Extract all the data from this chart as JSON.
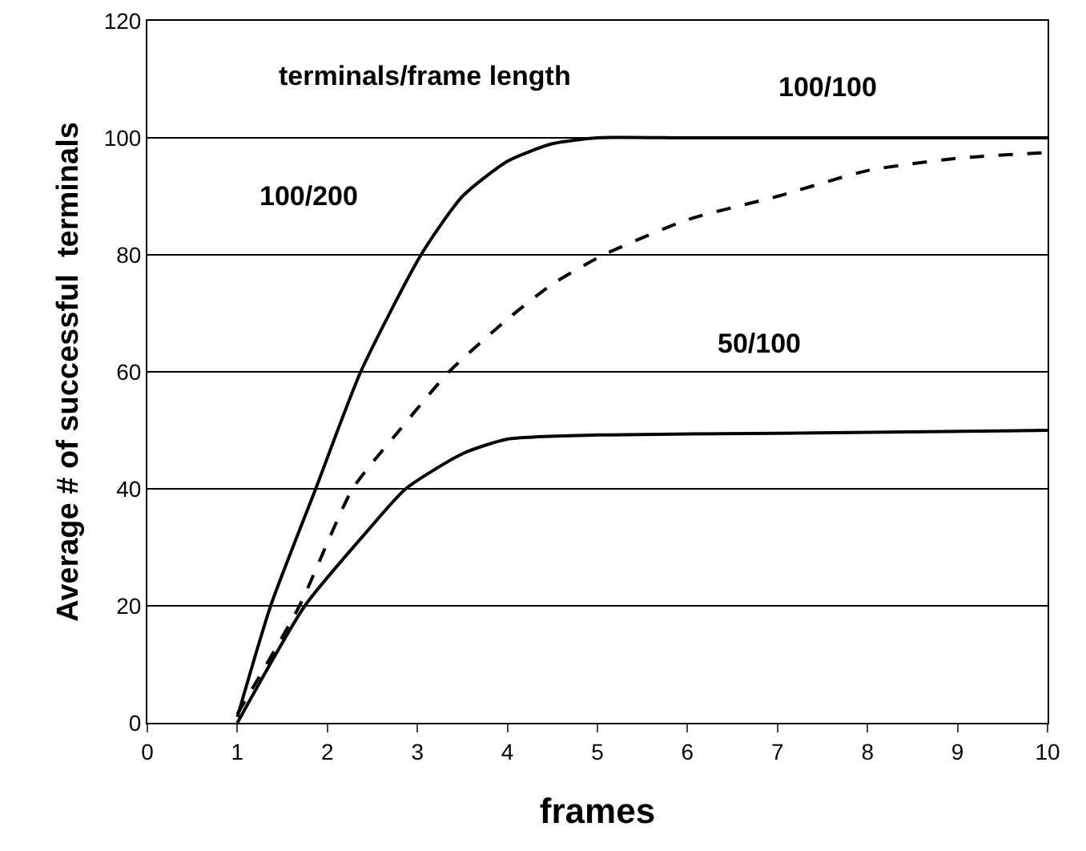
{
  "chart_data": {
    "type": "line",
    "xlabel": "frames",
    "ylabel": "Average # of successful  terminals",
    "xlim": [
      0,
      10
    ],
    "ylim": [
      0,
      120
    ],
    "xticks": [
      0,
      1,
      2,
      3,
      4,
      5,
      6,
      7,
      8,
      9,
      10
    ],
    "yticks": [
      0,
      20,
      40,
      60,
      80,
      100,
      120
    ],
    "grid": "y",
    "marker": "none",
    "series": [
      {
        "color": "#000000",
        "line_style": "solid",
        "x": [
          1,
          1.37,
          1.87,
          2.37,
          3.04,
          3.5,
          4,
          4.5,
          5,
          6,
          8,
          10
        ],
        "values": [
          1,
          20,
          40,
          60,
          80,
          90,
          96,
          99,
          100,
          100,
          100,
          100
        ]
      },
      {
        "color": "#000000",
        "line_style": "dashed",
        "x": [
          1,
          1.69,
          2.28,
          2.8,
          3.35,
          4,
          4.5,
          5.07,
          6,
          7,
          8,
          9,
          10
        ],
        "values": [
          1.5,
          20,
          40,
          50,
          60,
          69,
          75,
          80,
          86,
          90,
          94.4,
          96.5,
          97.5
        ]
      },
      {
        "color": "#000000",
        "line_style": "solid",
        "x": [
          1,
          1.75,
          2.4,
          2.87,
          3.5,
          4,
          5,
          7,
          10
        ],
        "values": [
          0,
          20,
          32,
          40,
          46,
          48.5,
          49.2,
          49.5,
          50
        ]
      }
    ],
    "annotations": [
      "terminals/frame length",
      "100/200",
      "100/100",
      "50/100"
    ]
  }
}
